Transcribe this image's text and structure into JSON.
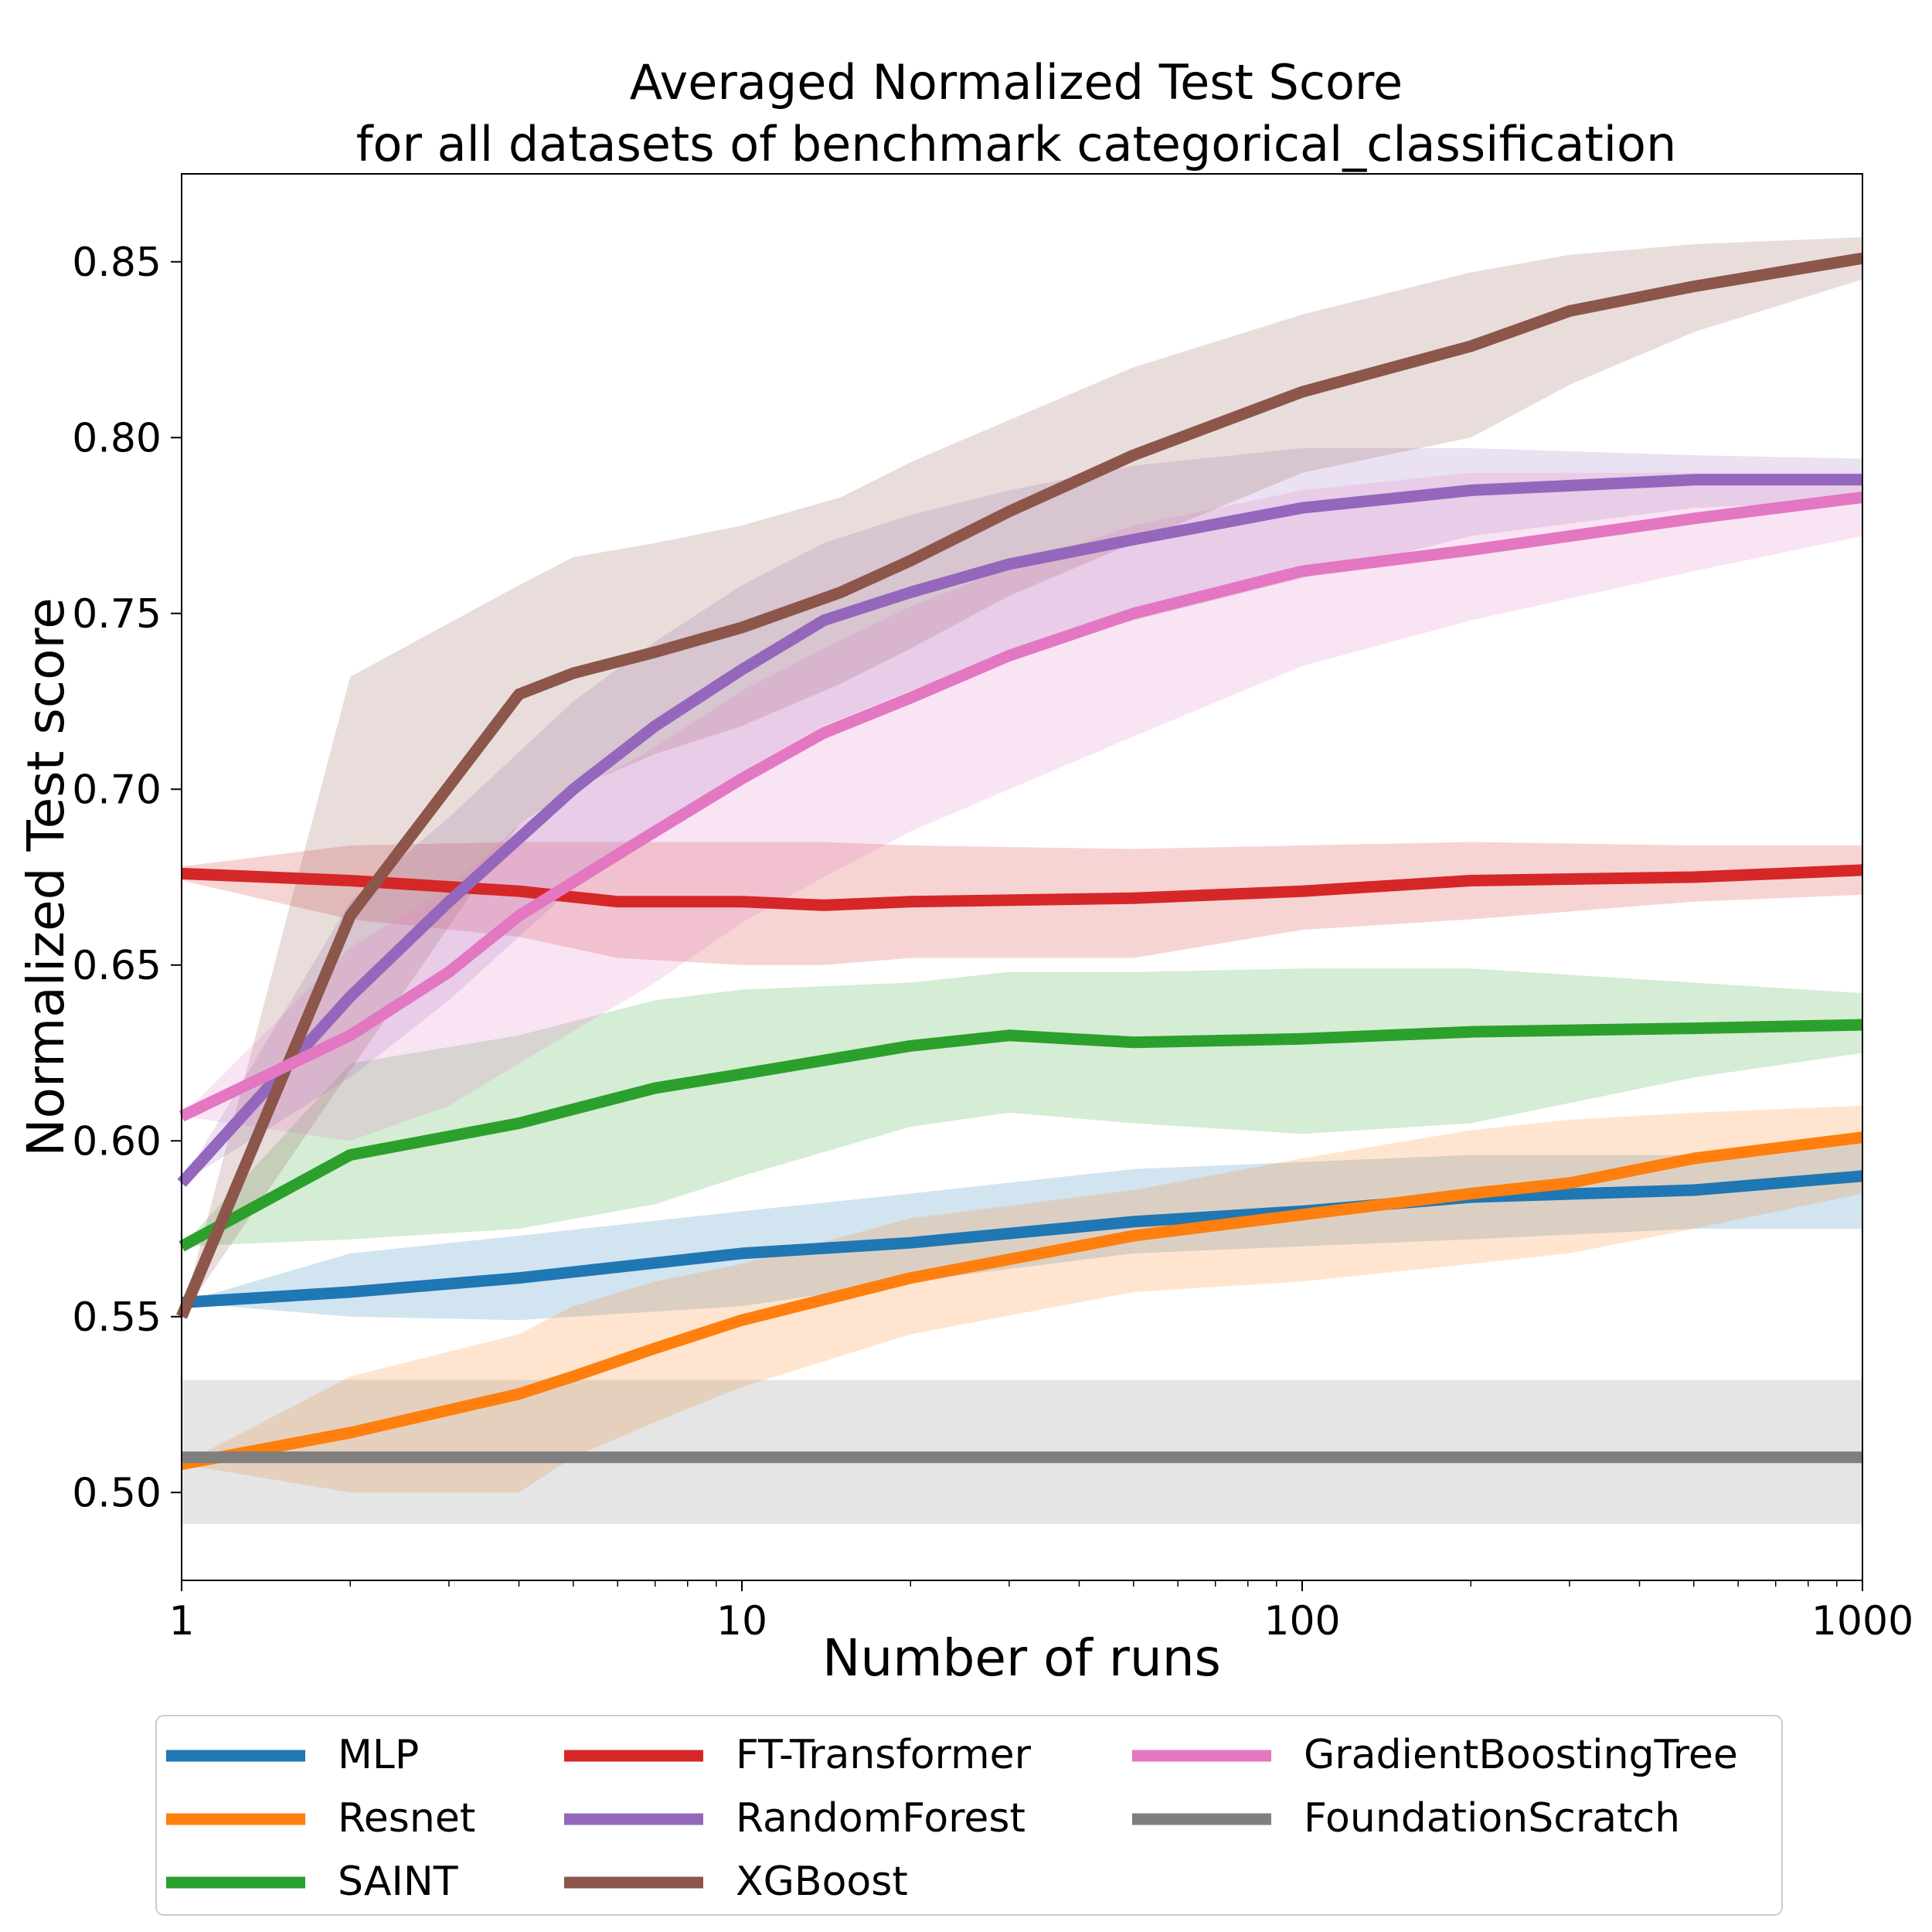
{
  "chart_data": {
    "type": "line",
    "title": "Averaged Normalized Test Score",
    "subtitle": "for all datasets of benchmark categorical_classification",
    "xlabel": "Number of runs",
    "ylabel": "Normalized Test score",
    "xscale": "log",
    "xlim": [
      1,
      1000
    ],
    "ylim": [
      0.475,
      0.875
    ],
    "xticks": [
      1,
      10,
      100,
      1000
    ],
    "xtick_labels": [
      "1",
      "10",
      "100",
      "1000"
    ],
    "yticks": [
      0.5,
      0.55,
      0.6,
      0.65,
      0.7,
      0.75,
      0.8,
      0.85
    ],
    "ytick_labels": [
      "0.50",
      "0.55",
      "0.60",
      "0.65",
      "0.70",
      "0.75",
      "0.80",
      "0.85"
    ],
    "grid": false,
    "legend": "below",
    "series": [
      {
        "name": "MLP",
        "color": "#1f77b4",
        "x": [
          1,
          2,
          4,
          10,
          20,
          50,
          100,
          200,
          500,
          1000
        ],
        "y": [
          0.554,
          0.557,
          0.561,
          0.568,
          0.571,
          0.577,
          0.58,
          0.584,
          0.586,
          0.59
        ],
        "lower": [
          0.554,
          0.55,
          0.549,
          0.553,
          0.56,
          0.568,
          0.57,
          0.572,
          0.575,
          0.575
        ],
        "upper": [
          0.554,
          0.568,
          0.573,
          0.58,
          0.585,
          0.592,
          0.594,
          0.596,
          0.596,
          0.6
        ]
      },
      {
        "name": "Resnet",
        "color": "#ff7f0e",
        "x": [
          1,
          2,
          4,
          5,
          7,
          10,
          20,
          50,
          100,
          200,
          300,
          500,
          1000
        ],
        "y": [
          0.508,
          0.517,
          0.528,
          0.533,
          0.541,
          0.549,
          0.561,
          0.573,
          0.579,
          0.585,
          0.588,
          0.595,
          0.601
        ],
        "lower": [
          0.508,
          0.5,
          0.5,
          0.51,
          0.52,
          0.53,
          0.545,
          0.557,
          0.56,
          0.565,
          0.568,
          0.575,
          0.585
        ],
        "upper": [
          0.508,
          0.533,
          0.545,
          0.553,
          0.56,
          0.565,
          0.578,
          0.586,
          0.595,
          0.603,
          0.606,
          0.608,
          0.61
        ]
      },
      {
        "name": "SAINT",
        "color": "#2ca02c",
        "x": [
          1,
          2,
          4,
          7,
          10,
          20,
          30,
          50,
          100,
          200,
          500,
          1000
        ],
        "y": [
          0.57,
          0.596,
          0.605,
          0.615,
          0.619,
          0.627,
          0.63,
          0.628,
          0.629,
          0.631,
          0.632,
          0.633
        ],
        "lower": [
          0.57,
          0.572,
          0.575,
          0.582,
          0.59,
          0.604,
          0.608,
          0.605,
          0.602,
          0.605,
          0.618,
          0.625
        ],
        "upper": [
          0.57,
          0.622,
          0.63,
          0.64,
          0.643,
          0.645,
          0.648,
          0.648,
          0.649,
          0.649,
          0.645,
          0.642
        ]
      },
      {
        "name": "FT-Transformer",
        "color": "#d62728",
        "x": [
          1,
          2,
          4,
          6,
          10,
          14,
          20,
          50,
          100,
          200,
          500,
          1000
        ],
        "y": [
          0.676,
          0.674,
          0.671,
          0.668,
          0.668,
          0.667,
          0.668,
          0.669,
          0.671,
          0.674,
          0.675,
          0.677
        ],
        "lower": [
          0.674,
          0.663,
          0.658,
          0.652,
          0.65,
          0.65,
          0.652,
          0.652,
          0.66,
          0.663,
          0.668,
          0.67
        ],
        "upper": [
          0.678,
          0.684,
          0.685,
          0.685,
          0.685,
          0.685,
          0.684,
          0.683,
          0.684,
          0.685,
          0.684,
          0.684
        ]
      },
      {
        "name": "RandomForest",
        "color": "#9467bd",
        "x": [
          1,
          2,
          3,
          5,
          7,
          10,
          14,
          20,
          30,
          50,
          100,
          200,
          500,
          1000
        ],
        "y": [
          0.588,
          0.641,
          0.668,
          0.7,
          0.718,
          0.734,
          0.748,
          0.756,
          0.764,
          0.771,
          0.78,
          0.785,
          0.788,
          0.788
        ],
        "lower": [
          0.588,
          0.618,
          0.64,
          0.672,
          0.688,
          0.705,
          0.718,
          0.728,
          0.738,
          0.748,
          0.76,
          0.772,
          0.78,
          0.782
        ],
        "upper": [
          0.588,
          0.668,
          0.692,
          0.725,
          0.742,
          0.758,
          0.77,
          0.778,
          0.785,
          0.792,
          0.797,
          0.797,
          0.795,
          0.794
        ]
      },
      {
        "name": "XGBoost",
        "color": "#8c564b",
        "x": [
          1,
          2,
          4,
          5,
          7,
          10,
          15,
          20,
          30,
          50,
          100,
          200,
          300,
          500,
          1000
        ],
        "y": [
          0.55,
          0.664,
          0.727,
          0.733,
          0.739,
          0.746,
          0.756,
          0.765,
          0.779,
          0.795,
          0.813,
          0.826,
          0.836,
          0.843,
          0.851
        ],
        "lower": [
          0.55,
          0.62,
          0.69,
          0.7,
          0.71,
          0.718,
          0.73,
          0.74,
          0.755,
          0.77,
          0.79,
          0.8,
          0.815,
          0.83,
          0.845
        ],
        "upper": [
          0.55,
          0.732,
          0.758,
          0.766,
          0.77,
          0.775,
          0.783,
          0.793,
          0.805,
          0.82,
          0.835,
          0.847,
          0.852,
          0.855,
          0.857
        ]
      },
      {
        "name": "GradientBoostingTree",
        "color": "#e377c2",
        "x": [
          1,
          2,
          3,
          4,
          7,
          10,
          14,
          20,
          30,
          50,
          100,
          200,
          500,
          1000
        ],
        "y": [
          0.607,
          0.63,
          0.648,
          0.664,
          0.688,
          0.703,
          0.716,
          0.726,
          0.738,
          0.75,
          0.762,
          0.768,
          0.777,
          0.783
        ],
        "lower": [
          0.607,
          0.6,
          0.61,
          0.622,
          0.645,
          0.662,
          0.675,
          0.688,
          0.7,
          0.715,
          0.735,
          0.748,
          0.762,
          0.772
        ],
        "upper": [
          0.607,
          0.655,
          0.672,
          0.69,
          0.712,
          0.728,
          0.74,
          0.752,
          0.763,
          0.775,
          0.785,
          0.79,
          0.79,
          0.79
        ]
      },
      {
        "name": "FoundationScratch",
        "color": "#7f7f7f",
        "x": [
          1,
          1000
        ],
        "y": [
          0.51,
          0.51
        ],
        "lower": [
          0.491,
          0.491
        ],
        "upper": [
          0.532,
          0.532
        ]
      }
    ]
  }
}
